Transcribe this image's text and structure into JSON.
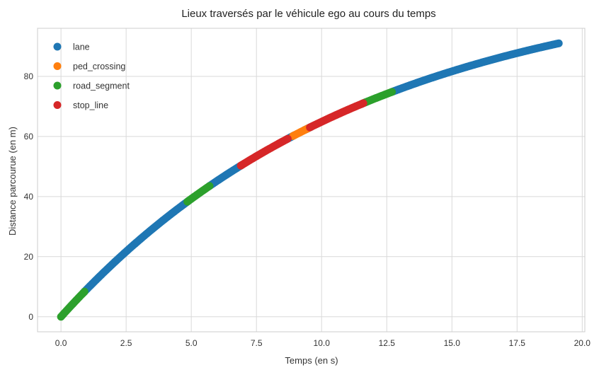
{
  "chart_data": {
    "type": "scatter",
    "title": "Lieux traversés par le véhicule ego au cours du temps",
    "xlabel": "Temps (en s)",
    "ylabel": "Distance parcourue (en m)",
    "xlim": [
      -0.9,
      20.1
    ],
    "ylim": [
      -5,
      96
    ],
    "x_ticks": [
      0.0,
      2.5,
      5.0,
      7.5,
      10.0,
      12.5,
      15.0,
      17.5,
      20.0
    ],
    "x_tick_labels": [
      "0.0",
      "2.5",
      "5.0",
      "7.5",
      "10.0",
      "12.5",
      "15.0",
      "17.5",
      "20.0"
    ],
    "y_ticks": [
      0,
      20,
      40,
      60,
      80
    ],
    "y_tick_labels": [
      "0",
      "20",
      "40",
      "60",
      "80"
    ],
    "grid": true,
    "legend_position": "top-left",
    "curve": {
      "x_end": 19.1,
      "y_end": 91,
      "shape": "concave"
    },
    "series": [
      {
        "name": "lane",
        "color": "#1f77b4",
        "segments": [
          [
            0.85,
            4.9
          ],
          [
            5.7,
            6.95
          ],
          [
            8.65,
            8.95
          ],
          [
            9.6,
            9.35
          ],
          [
            11.5,
            11.7
          ],
          [
            12.7,
            19.1
          ]
        ]
      },
      {
        "name": "ped_crossing",
        "color": "#ff7f0e",
        "segments": [
          [
            8.9,
            9.5
          ]
        ]
      },
      {
        "name": "road_segment",
        "color": "#2ca02c",
        "segments": [
          [
            0.0,
            0.9
          ],
          [
            4.85,
            5.7
          ],
          [
            11.65,
            12.7
          ]
        ]
      },
      {
        "name": "stop_line",
        "color": "#d62728",
        "segments": [
          [
            6.9,
            8.7
          ],
          [
            9.55,
            11.6
          ]
        ]
      }
    ]
  }
}
